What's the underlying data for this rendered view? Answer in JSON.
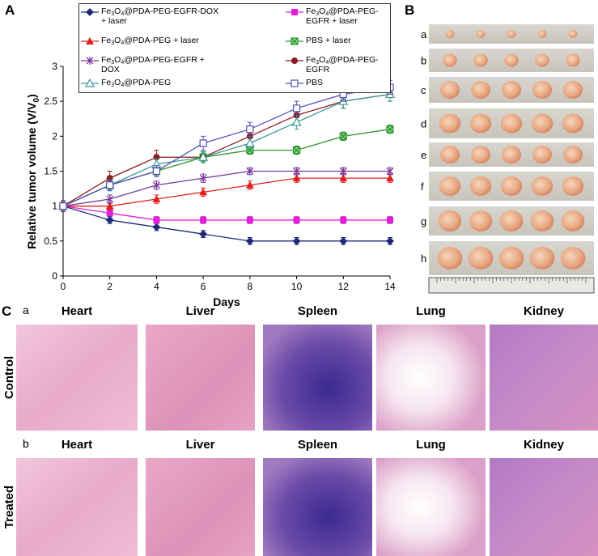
{
  "panel_labels": [
    "A",
    "B",
    "C"
  ],
  "chart_data": {
    "type": "line",
    "title": null,
    "x_label": "Days",
    "y_label": "Relative tumor volume (V/V0)",
    "x": [
      0,
      2,
      4,
      6,
      8,
      10,
      12,
      14
    ],
    "xlim": [
      0,
      14
    ],
    "xticks": [
      0,
      2,
      4,
      6,
      8,
      10,
      12,
      14
    ],
    "ylim": [
      0,
      3
    ],
    "yticks": [
      0,
      0.5,
      1,
      1.5,
      2,
      2.5,
      3
    ],
    "grid": false,
    "series": [
      {
        "name": "Fe3O4@PDA-PEG-EGFR-DOX + laser",
        "color": "#1f2a78",
        "marker": "diamond",
        "values": [
          1,
          0.8,
          0.7,
          0.6,
          0.5,
          0.5,
          0.5,
          0.5
        ],
        "errors": [
          0.05,
          0.05,
          0.05,
          0.05,
          0.05,
          0.05,
          0.05,
          0.05
        ]
      },
      {
        "name": "Fe3O4@PDA-PEG-EGFR + laser",
        "color": "#e020d8",
        "marker": "square",
        "values": [
          1,
          0.9,
          0.8,
          0.8,
          0.8,
          0.8,
          0.8,
          0.8
        ],
        "errors": [
          0.05,
          0.04,
          0.05,
          0.05,
          0.05,
          0.05,
          0.05,
          0.05
        ]
      },
      {
        "name": "Fe3O4@PDA-PEG + laser",
        "color": "#e02020",
        "marker": "triangle",
        "values": [
          1,
          1.0,
          1.1,
          1.2,
          1.3,
          1.4,
          1.4,
          1.4
        ],
        "errors": [
          0.05,
          0.05,
          0.06,
          0.06,
          0.06,
          0.06,
          0.06,
          0.06
        ]
      },
      {
        "name": "PBS + laser",
        "color": "#2a942a",
        "marker": "boxx",
        "values": [
          1,
          1.3,
          1.5,
          1.7,
          1.8,
          1.8,
          2.0,
          2.1
        ],
        "errors": [
          0.05,
          0.06,
          0.06,
          0.06,
          0.06,
          0.06,
          0.06,
          0.06
        ]
      },
      {
        "name": "Fe3O4@PDA-PEG-EGFR + DOX",
        "color": "#7a3a9a",
        "marker": "asterisk",
        "values": [
          1,
          1.1,
          1.3,
          1.4,
          1.5,
          1.5,
          1.5,
          1.5
        ],
        "errors": [
          0.05,
          0.06,
          0.06,
          0.06,
          0.05,
          0.05,
          0.05,
          0.05
        ]
      },
      {
        "name": "Fe3O4@PDA-PEG-EGFR",
        "color": "#8b1a1a",
        "marker": "circle",
        "values": [
          1,
          1.4,
          1.7,
          1.7,
          2.0,
          2.3,
          2.5,
          2.6
        ],
        "errors": [
          0.08,
          0.1,
          0.1,
          0.08,
          0.1,
          0.1,
          0.1,
          0.1
        ]
      },
      {
        "name": "Fe3O4@PDA-PEG",
        "color": "#3a9a9a",
        "marker": "triangle-open",
        "values": [
          1,
          1.3,
          1.6,
          1.7,
          1.9,
          2.2,
          2.5,
          2.6
        ],
        "errors": [
          0.06,
          0.08,
          0.08,
          0.08,
          0.1,
          0.1,
          0.1,
          0.1
        ]
      },
      {
        "name": "PBS",
        "color": "#5050b8",
        "marker": "square-open",
        "values": [
          1,
          1.3,
          1.5,
          1.9,
          2.1,
          2.4,
          2.6,
          2.7
        ],
        "errors": [
          0.06,
          0.08,
          0.08,
          0.1,
          0.1,
          0.1,
          0.1,
          0.1
        ]
      }
    ]
  },
  "tumor_panel": {
    "row_labels": [
      "a",
      "b",
      "c",
      "d",
      "e",
      "f",
      "g",
      "h"
    ]
  },
  "histology": {
    "rows": [
      {
        "label": "a",
        "group": "Control",
        "organs": [
          "Heart",
          "Liver",
          "Spleen",
          "Lung",
          "Kidney"
        ]
      },
      {
        "label": "b",
        "group": "Treated",
        "organs": [
          "Heart",
          "Liver",
          "Spleen",
          "Lung",
          "Kidney"
        ]
      }
    ]
  }
}
